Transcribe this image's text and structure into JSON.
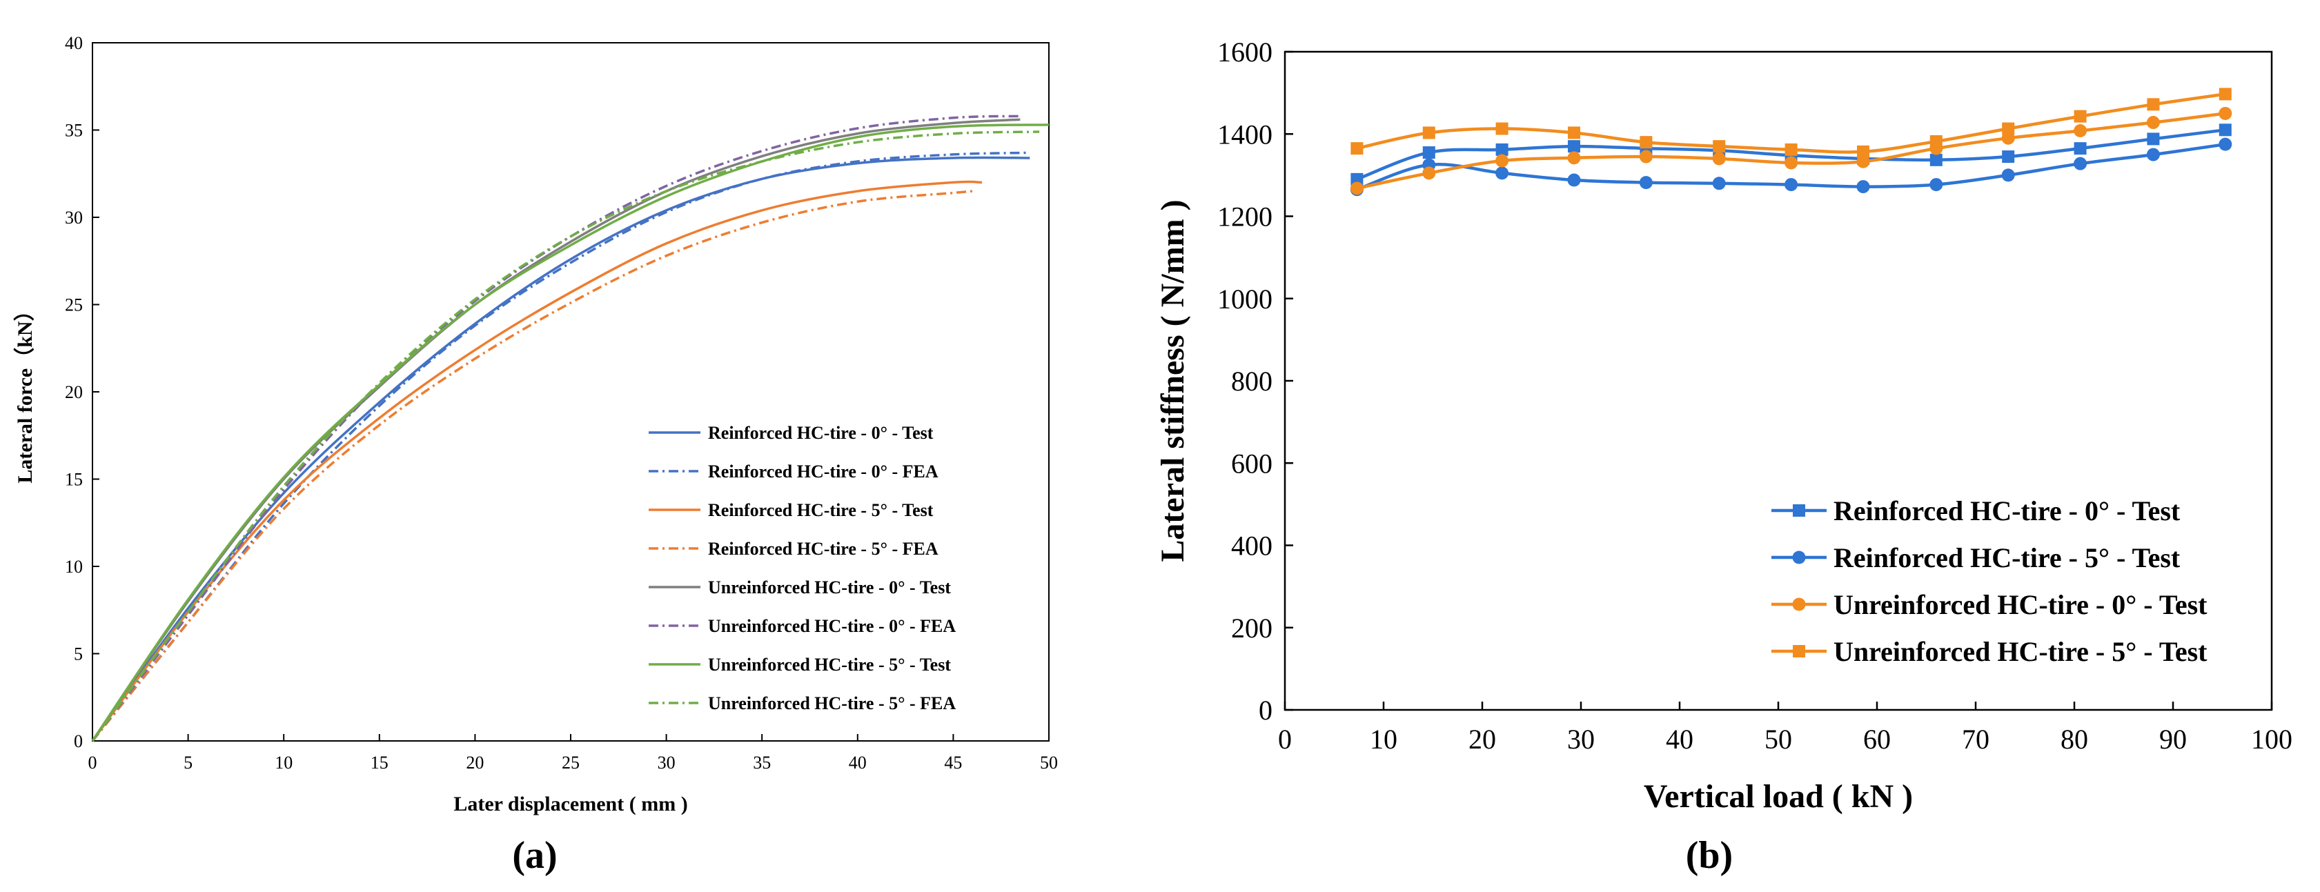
{
  "chart_data": [
    {
      "type": "line",
      "panel_label": "(a)",
      "title": "",
      "xlabel": "Later displacement ( mm )",
      "ylabel": "Lateral force（kN）",
      "xlim": [
        0,
        50
      ],
      "ylim": [
        0,
        40
      ],
      "xticks": [
        "0",
        "5",
        "10",
        "15",
        "20",
        "25",
        "30",
        "35",
        "40",
        "45",
        "50"
      ],
      "yticks": [
        "0",
        "5",
        "10",
        "15",
        "20",
        "25",
        "30",
        "35",
        "40"
      ],
      "grid": false,
      "legend_position": "bottom-right",
      "series": [
        {
          "name": "Reinforced HC-tire - 0° - Test",
          "color": "#4472C4",
          "dash": "solid",
          "x": [
            0,
            5,
            10,
            15,
            20,
            25,
            30,
            35,
            40,
            45,
            49
          ],
          "y": [
            0,
            7.6,
            14.2,
            19.4,
            23.9,
            27.6,
            30.4,
            32.2,
            33.1,
            33.4,
            33.4
          ]
        },
        {
          "name": "Reinforced HC-tire - 0° - FEA",
          "color": "#4472C4",
          "dash": "dashdot",
          "x": [
            0,
            5,
            10,
            15,
            20,
            25,
            30,
            35,
            40,
            45,
            49
          ],
          "y": [
            0,
            6.8,
            13.6,
            19.2,
            23.8,
            27.4,
            30.3,
            32.2,
            33.2,
            33.6,
            33.7
          ]
        },
        {
          "name": "Reinforced HC-tire - 5° - Test",
          "color": "#ED7D31",
          "dash": "solid",
          "x": [
            0,
            5,
            10,
            15,
            20,
            25,
            30,
            35,
            40,
            45,
            46.5
          ],
          "y": [
            0,
            7.4,
            13.8,
            18.5,
            22.4,
            25.7,
            28.5,
            30.4,
            31.5,
            32.0,
            32.0
          ]
        },
        {
          "name": "Reinforced HC-tire - 5° - FEA",
          "color": "#ED7D31",
          "dash": "dashdot",
          "x": [
            0,
            5,
            10,
            15,
            20,
            25,
            30,
            35,
            40,
            45,
            46
          ],
          "y": [
            0,
            6.8,
            13.3,
            18.1,
            21.9,
            25.1,
            27.8,
            29.7,
            30.9,
            31.4,
            31.5
          ]
        },
        {
          "name": "Unreinforced HC-tire - 0° - Test",
          "color": "#7F7F7F",
          "dash": "solid",
          "x": [
            0,
            5,
            10,
            15,
            20,
            25,
            30,
            35,
            40,
            45,
            48.5
          ],
          "y": [
            0,
            8.0,
            15.0,
            20.3,
            25.0,
            28.6,
            31.5,
            33.5,
            34.8,
            35.4,
            35.6
          ]
        },
        {
          "name": "Unreinforced HC-tire - 0° - FEA",
          "color": "#8064A2",
          "dash": "dashdot",
          "x": [
            0,
            5,
            10,
            15,
            20,
            25,
            30,
            35,
            40,
            45,
            48.5
          ],
          "y": [
            0,
            7.2,
            14.4,
            20.4,
            25.2,
            28.9,
            31.8,
            33.8,
            35.1,
            35.7,
            35.8
          ]
        },
        {
          "name": "Unreinforced HC-tire - 5° - Test",
          "color": "#70AD47",
          "dash": "solid",
          "x": [
            0,
            5,
            10,
            15,
            20,
            25,
            30,
            35,
            40,
            45,
            50
          ],
          "y": [
            0,
            8.1,
            15.1,
            20.4,
            25.0,
            28.4,
            31.2,
            33.2,
            34.6,
            35.2,
            35.3
          ]
        },
        {
          "name": "Unreinforced HC-tire - 5° - FEA",
          "color": "#70AD47",
          "dash": "dashdot",
          "x": [
            0,
            5,
            10,
            15,
            20,
            25,
            30,
            35,
            40,
            45,
            49.5
          ],
          "y": [
            0,
            7.4,
            14.6,
            20.5,
            25.3,
            28.9,
            31.5,
            33.2,
            34.3,
            34.8,
            34.9
          ]
        }
      ]
    },
    {
      "type": "line",
      "panel_label": "(b)",
      "title": "",
      "xlabel": "Vertical load ( kN )",
      "ylabel": "Lateral stiffness ( N/mm )",
      "xlim": [
        0,
        100
      ],
      "ylim": [
        0,
        1600
      ],
      "xticks": [
        "0",
        "10",
        "20",
        "30",
        "40",
        "50",
        "60",
        "70",
        "80",
        "90",
        "100"
      ],
      "yticks": [
        "0",
        "200",
        "400",
        "600",
        "800",
        "1000",
        "1200",
        "1400",
        "1600"
      ],
      "grid": false,
      "legend_position": "bottom-right",
      "series": [
        {
          "name": "Reinforced HC-tire - 0° - Test",
          "color": "#2E75D4",
          "marker": "square",
          "x": [
            7.3,
            14.6,
            22,
            29.3,
            36.6,
            44,
            51.3,
            58.6,
            66,
            73.3,
            80.6,
            88,
            95.3
          ],
          "y": [
            1290,
            1355,
            1362,
            1370,
            1365,
            1360,
            1348,
            1340,
            1337,
            1345,
            1365,
            1388,
            1410
          ]
        },
        {
          "name": "Reinforced HC-tire - 5° - Test",
          "color": "#2E75D4",
          "marker": "circle",
          "x": [
            7.3,
            14.6,
            22,
            29.3,
            36.6,
            44,
            51.3,
            58.6,
            66,
            73.3,
            80.6,
            88,
            95.3
          ],
          "y": [
            1265,
            1325,
            1305,
            1288,
            1282,
            1280,
            1277,
            1272,
            1277,
            1300,
            1328,
            1350,
            1375
          ]
        },
        {
          "name": "Unreinforced HC-tire - 0° - Test",
          "color": "#F28C1E",
          "marker": "circle",
          "x": [
            7.3,
            14.6,
            22,
            29.3,
            36.6,
            44,
            51.3,
            58.6,
            66,
            73.3,
            80.6,
            88,
            95.3
          ],
          "y": [
            1268,
            1305,
            1335,
            1342,
            1345,
            1340,
            1330,
            1333,
            1365,
            1390,
            1408,
            1428,
            1450
          ]
        },
        {
          "name": "Unreinforced HC-tire - 5° - Test",
          "color": "#F28C1E",
          "marker": "square",
          "x": [
            7.3,
            14.6,
            22,
            29.3,
            36.6,
            44,
            51.3,
            58.6,
            66,
            73.3,
            80.6,
            88,
            95.3
          ],
          "y": [
            1365,
            1403,
            1413,
            1403,
            1380,
            1370,
            1362,
            1357,
            1382,
            1413,
            1443,
            1472,
            1497
          ]
        }
      ]
    }
  ]
}
